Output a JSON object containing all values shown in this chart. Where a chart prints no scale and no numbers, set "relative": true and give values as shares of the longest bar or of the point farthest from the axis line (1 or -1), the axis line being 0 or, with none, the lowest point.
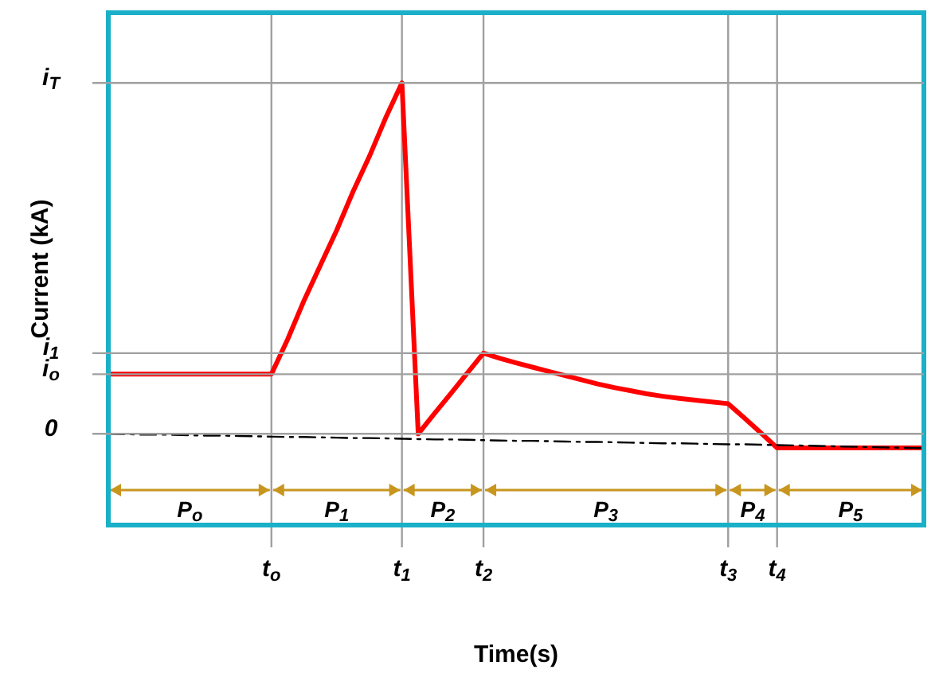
{
  "chart_data": {
    "type": "line",
    "relative": true,
    "xlabel": "Time(s)",
    "ylabel": "Current (kA)",
    "grid": "x",
    "legend": false,
    "marker": "none",
    "categories": [
      null,
      null,
      null,
      null,
      null,
      null,
      null,
      null,
      null,
      null,
      "t$_{o}$",
      null,
      null,
      null,
      null,
      null,
      null,
      null,
      "t$_{1}$",
      null,
      null,
      null,
      null,
      "t$_{2}$",
      null,
      null,
      null,
      null,
      null,
      null,
      null,
      null,
      null,
      null,
      null,
      null,
      null,
      null,
      "t$_{3}$",
      null,
      null,
      "t$_{4}$",
      null,
      null,
      null,
      null,
      null,
      null,
      null,
      null,
      null
    ],
    "series": [
      {
        "color": "#ff0000",
        "line_style": "solid",
        "values": [
          0.17,
          0.17,
          0.17,
          0.17,
          0.17,
          0.17,
          0.17,
          0.17,
          0.17,
          0.17,
          0.17,
          0.27,
          0.38,
          0.48,
          0.58,
          0.69,
          0.79,
          0.9,
          1,
          0,
          0.058,
          0.115,
          0.173,
          0.23,
          0.215,
          0.202,
          0.19,
          0.178,
          0.166,
          0.154,
          0.142,
          0.132,
          0.123,
          0.114,
          0.107,
          0.101,
          0.096,
          0.091,
          0.086,
          0.045,
          0.003,
          -0.04,
          -0.04,
          -0.04,
          -0.04,
          -0.04,
          -0.04,
          -0.04,
          -0.04,
          -0.04,
          -0.04
        ]
      },
      {
        "color": "#000000",
        "line_style": "dashed",
        "values": [
          0,
          -0.001,
          -0.002,
          -0.002,
          -0.003,
          -0.004,
          -0.005,
          -0.005,
          -0.006,
          -0.007,
          -0.008,
          -0.009,
          -0.009,
          -0.01,
          -0.011,
          -0.012,
          -0.012,
          -0.013,
          -0.014,
          -0.015,
          -0.016,
          -0.016,
          -0.017,
          -0.018,
          -0.019,
          -0.02,
          -0.02,
          -0.021,
          -0.022,
          -0.023,
          -0.023,
          -0.024,
          -0.025,
          -0.026,
          -0.027,
          -0.027,
          -0.028,
          -0.029,
          -0.03,
          -0.03,
          -0.031,
          -0.032,
          -0.033,
          -0.034,
          -0.035,
          -0.036,
          -0.037,
          -0.038,
          -0.039,
          -0.04,
          -0.041
        ]
      }
    ],
    "annotations": [
      "P$_{o}$",
      "P$_{1}$",
      "P$_{2}$",
      "P$_{3}$",
      "P$_{4}$",
      "P$_{5}$",
      "0",
      "i$_{o}$",
      "i$_{T}$",
      "i$_{1}$"
    ]
  }
}
